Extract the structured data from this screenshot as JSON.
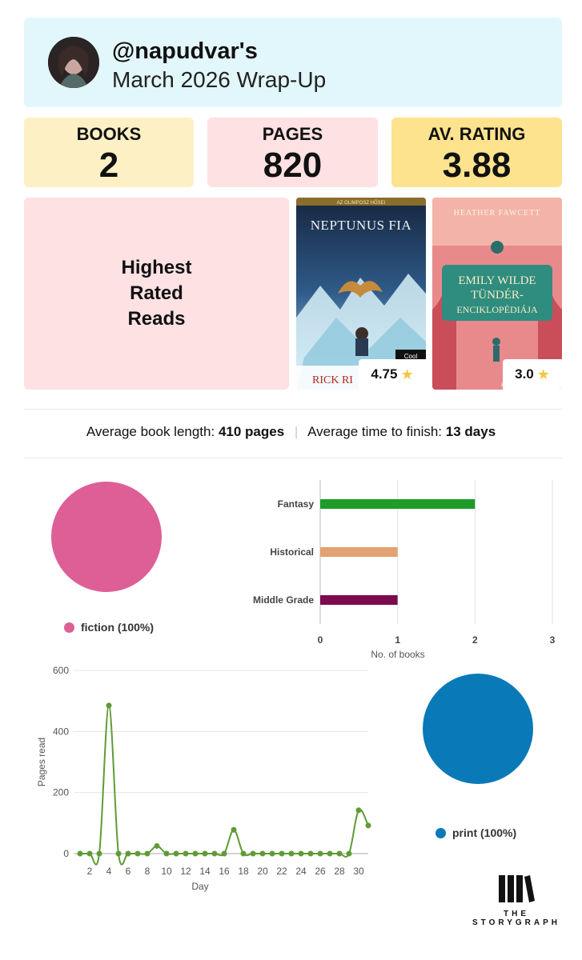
{
  "header": {
    "username": "@napudvar's",
    "title": "March 2026 Wrap-Up"
  },
  "stats": [
    {
      "label": "BOOKS",
      "value": "2"
    },
    {
      "label": "PAGES",
      "value": "820"
    },
    {
      "label": "AV. RATING",
      "value": "3.88"
    }
  ],
  "highest_rated": {
    "label": "Highest Rated Reads",
    "books": [
      {
        "series_text": "AZ OLIMPOSZ HŐSEI",
        "title": "NEPTUNUS FIA",
        "author": "RICK RI",
        "badge": "Cool",
        "rating": "4.75"
      },
      {
        "author": "HEATHER FAWCETT",
        "title_line1": "EMILY WILDE",
        "title_line2": "TÜNDÉR-",
        "title_line3": "ENCIKLOPÉDIÁJA",
        "publisher": "agave",
        "rating": "3.0"
      }
    ]
  },
  "averages": {
    "length_label": "Average book length:",
    "length_value": "410 pages",
    "time_label": "Average time to finish:",
    "time_value": "13 days"
  },
  "fiction_pie": {
    "legend": "fiction (100%)",
    "color": "#dd5f95"
  },
  "format_pie": {
    "legend": "print (100%)",
    "color": "#0a79b8"
  },
  "chart_data": [
    {
      "type": "bar",
      "orientation": "horizontal",
      "categories": [
        "Fantasy",
        "Historical",
        "Middle Grade"
      ],
      "values": [
        2,
        1,
        1
      ],
      "colors": [
        "#1e9c2a",
        "#e2a271",
        "#7d0a4d"
      ],
      "xlabel": "No. of books",
      "xlim": [
        0,
        3
      ],
      "xticks": [
        0,
        1,
        2,
        3
      ]
    },
    {
      "type": "line",
      "x": [
        1,
        2,
        3,
        4,
        5,
        6,
        7,
        8,
        9,
        10,
        11,
        12,
        13,
        14,
        15,
        16,
        17,
        18,
        19,
        20,
        21,
        22,
        23,
        24,
        25,
        26,
        27,
        28,
        29,
        30,
        31
      ],
      "values": [
        0,
        0,
        0,
        485,
        0,
        0,
        0,
        0,
        25,
        0,
        0,
        0,
        0,
        0,
        0,
        0,
        78,
        0,
        0,
        0,
        0,
        0,
        0,
        0,
        0,
        0,
        0,
        0,
        0,
        142,
        92
      ],
      "color": "#5e9b36",
      "xlabel": "Day",
      "ylabel": "Pages read",
      "ylim": [
        0,
        600
      ],
      "yticks": [
        0,
        200,
        400,
        600
      ],
      "xticks": [
        2,
        4,
        6,
        8,
        10,
        12,
        14,
        16,
        18,
        20,
        22,
        24,
        26,
        28,
        30
      ]
    }
  ],
  "logo": {
    "line1": "THE",
    "line2": "STORYGRAPH"
  }
}
